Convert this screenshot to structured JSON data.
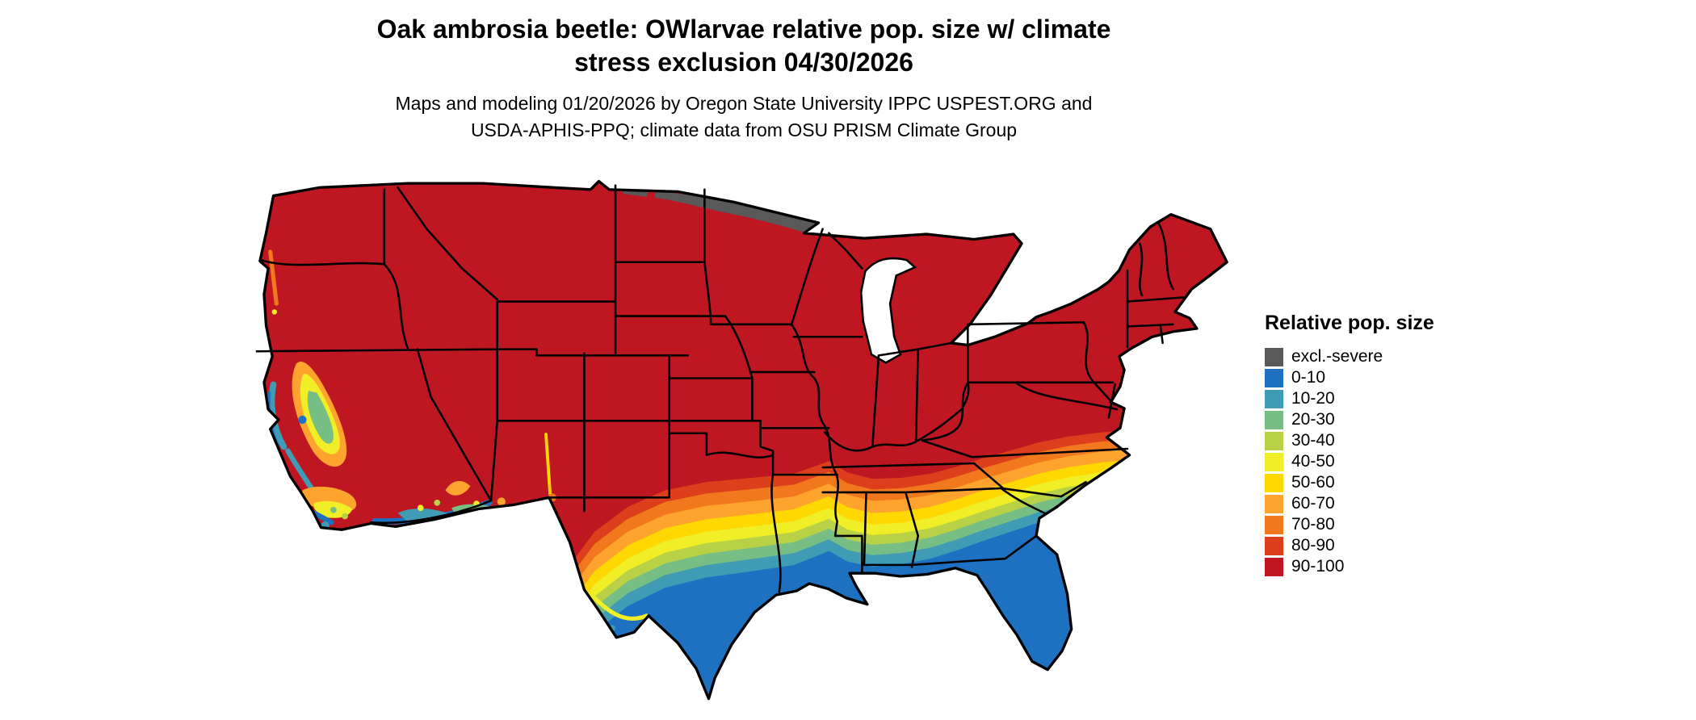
{
  "title": {
    "line1": "Oak ambrosia beetle: OWlarvae relative pop. size w/ climate",
    "line2": "stress exclusion 04/30/2026"
  },
  "subtitle": {
    "line1": "Maps and modeling 01/20/2026 by Oregon State University IPPC USPEST.ORG and",
    "line2": "USDA-APHIS-PPQ; climate data from OSU PRISM Climate Group"
  },
  "legend": {
    "title": "Relative pop. size",
    "items": [
      {
        "label": "excl.-severe",
        "color": "#595959"
      },
      {
        "label": "0-10",
        "color": "#1e70c1"
      },
      {
        "label": "10-20",
        "color": "#3f9cb4"
      },
      {
        "label": "20-30",
        "color": "#77be85"
      },
      {
        "label": "30-40",
        "color": "#b8d146"
      },
      {
        "label": "40-50",
        "color": "#f0ee26"
      },
      {
        "label": "50-60",
        "color": "#fed800"
      },
      {
        "label": "60-70",
        "color": "#fda32e"
      },
      {
        "label": "70-80",
        "color": "#f1781c"
      },
      {
        "label": "80-90",
        "color": "#dd3f1c"
      },
      {
        "label": "90-100",
        "color": "#bf1722"
      }
    ]
  },
  "map": {
    "region": "Continental United States",
    "border_color": "#000000",
    "water_color": "#ffffff"
  }
}
